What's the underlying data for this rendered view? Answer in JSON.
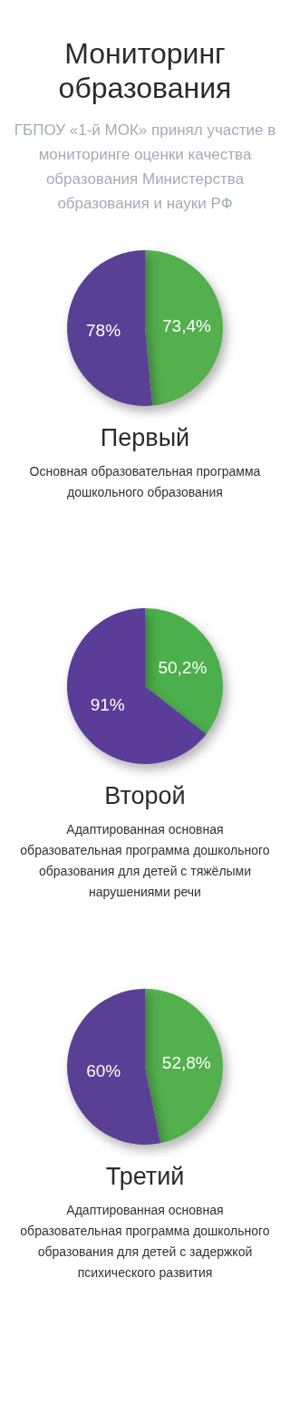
{
  "chart_data": [
    {
      "type": "other",
      "title": "Мониторинг образования",
      "subtitle": "ГБПОУ «1-й МОК» принял участие в мониторинге оценки качества образования  Министерства образования и науки РФ"
    },
    {
      "type": "pie",
      "title": "Первый",
      "subtitle": "Основная образовательная программа дошкольного образования",
      "categories": [
        null,
        null
      ],
      "values": [
        73.4,
        78
      ],
      "colors": [
        "#52b04e",
        "#5a3f94"
      ],
      "value_labels": [
        "73,4%",
        "78%"
      ]
    },
    {
      "type": "pie",
      "title": "Второй",
      "subtitle": "Адаптированная основная образовательная программа дошкольного образования для детей с тяжёлыми нарушениями речи",
      "categories": [
        null,
        null
      ],
      "values": [
        50.2,
        91
      ],
      "colors": [
        "#4cb04c",
        "#5a3d98"
      ],
      "value_labels": [
        "50,2%",
        "91%"
      ]
    },
    {
      "type": "pie",
      "title": "Третий",
      "subtitle": "Адаптированная основная образовательная программа дошкольного образования для детей с задержкой психического развития",
      "categories": [
        null,
        null
      ],
      "values": [
        52.8,
        60
      ],
      "colors": [
        "#52b04e",
        "#5a3f94"
      ],
      "value_labels": [
        "52,8%",
        "60%"
      ]
    }
  ]
}
